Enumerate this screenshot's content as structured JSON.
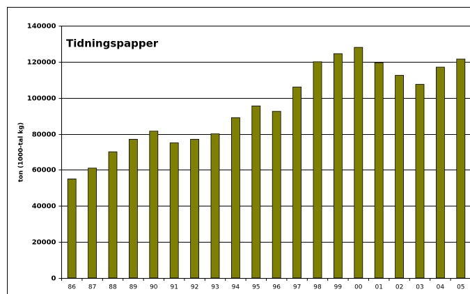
{
  "chart_data": {
    "type": "bar",
    "title": "Tidningspapper",
    "y_label": "ton (1000-tal kg)",
    "categories": [
      "86",
      "87",
      "88",
      "89",
      "90",
      "91",
      "92",
      "93",
      "94",
      "95",
      "96",
      "97",
      "98",
      "99",
      "00",
      "01",
      "02",
      "03",
      "04",
      "05"
    ],
    "values": [
      55000,
      61000,
      70000,
      77000,
      81500,
      75000,
      77000,
      80000,
      89000,
      95500,
      92500,
      106000,
      120000,
      124500,
      128000,
      119500,
      112500,
      107500,
      117000,
      121500
    ],
    "color": "#808000",
    "ylim": [
      0,
      140000
    ],
    "yticks": [
      0,
      20000,
      40000,
      60000,
      80000,
      100000,
      120000,
      140000
    ],
    "grid": true
  }
}
